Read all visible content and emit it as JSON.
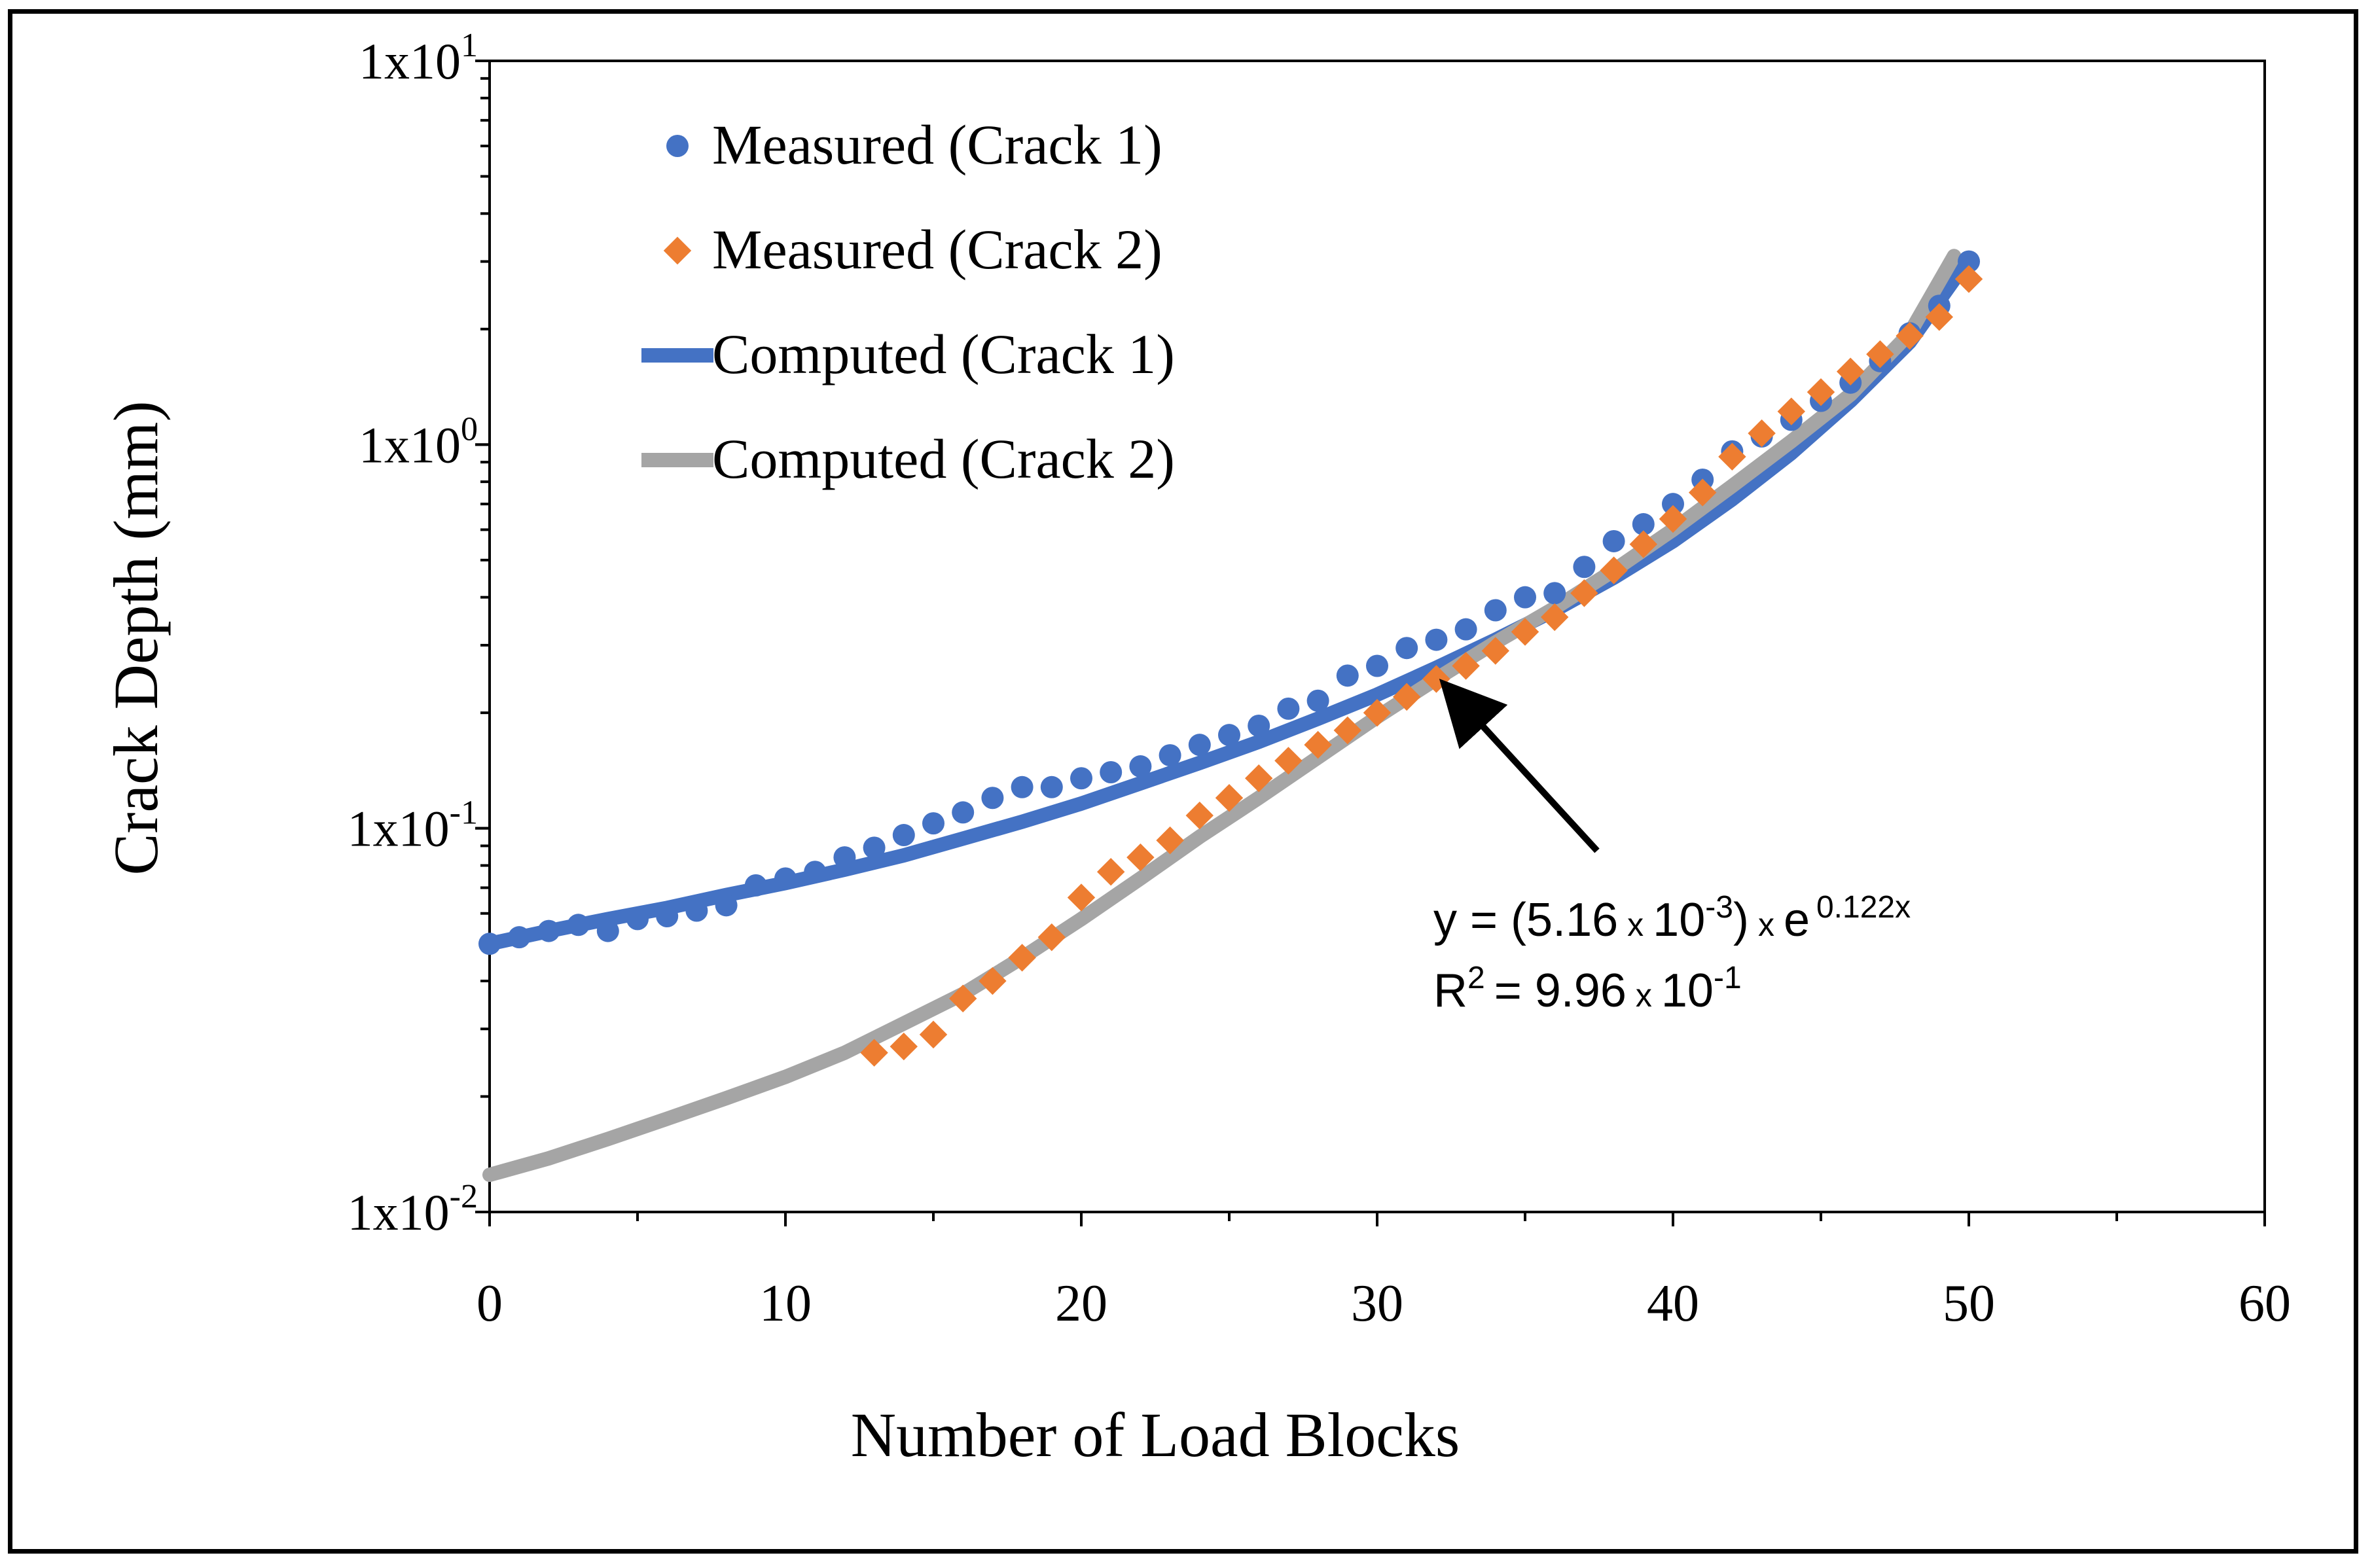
{
  "chart_data": {
    "type": "scatter",
    "title": "",
    "xlabel": "Number of Load Blocks",
    "ylabel": "Crack Depth (mm)",
    "xlim": [
      0,
      60
    ],
    "ylim": [
      0.01,
      10
    ],
    "yscale": "log",
    "grid": false,
    "legend_position": "top-left",
    "x_ticks": [
      0,
      10,
      20,
      30,
      40,
      50,
      60
    ],
    "x_tick_labels": [
      "0",
      "10",
      "20",
      "30",
      "40",
      "50",
      "60"
    ],
    "y_ticks": [
      {
        "value": 10,
        "mantissa": "1",
        "base": "x10",
        "exp": "1"
      },
      {
        "value": 1,
        "mantissa": "1",
        "base": "x10",
        "exp": "0"
      },
      {
        "value": 0.1,
        "mantissa": "1",
        "base": "x10",
        "exp": "-1"
      },
      {
        "value": 0.01,
        "mantissa": "1",
        "base": "x10",
        "exp": "-2"
      }
    ],
    "series": [
      {
        "name": "Measured (Crack 1)",
        "kind": "marker-circle",
        "color": "#4472C4",
        "x": [
          0,
          1,
          2,
          3,
          4,
          5,
          6,
          7,
          8,
          9,
          10,
          11,
          12,
          13,
          14,
          15,
          16,
          17,
          18,
          19,
          20,
          21,
          22,
          23,
          24,
          25,
          26,
          27,
          28,
          29,
          30,
          31,
          32,
          33,
          34,
          35,
          36,
          37,
          38,
          39,
          40,
          41,
          42,
          43,
          44,
          45,
          46,
          47,
          48,
          49,
          50
        ],
        "y": [
          0.05,
          0.052,
          0.054,
          0.056,
          0.054,
          0.058,
          0.059,
          0.061,
          0.063,
          0.071,
          0.074,
          0.077,
          0.084,
          0.089,
          0.096,
          0.103,
          0.11,
          0.12,
          0.128,
          0.128,
          0.135,
          0.14,
          0.145,
          0.155,
          0.165,
          0.175,
          0.185,
          0.205,
          0.215,
          0.25,
          0.265,
          0.295,
          0.31,
          0.33,
          0.37,
          0.4,
          0.41,
          0.48,
          0.56,
          0.62,
          0.7,
          0.81,
          0.96,
          1.05,
          1.16,
          1.3,
          1.45,
          1.65,
          1.95,
          2.3,
          3.0
        ]
      },
      {
        "name": "Measured (Crack 2)",
        "kind": "marker-diamond",
        "color": "#ED7D31",
        "x": [
          13,
          14,
          15,
          16,
          17,
          18,
          19,
          20,
          21,
          22,
          23,
          24,
          25,
          26,
          27,
          28,
          29,
          30,
          31,
          32,
          33,
          34,
          35,
          36,
          37,
          38,
          39,
          40,
          41,
          42,
          43,
          44,
          45,
          46,
          47,
          48,
          49,
          50
        ],
        "y": [
          0.026,
          0.027,
          0.029,
          0.036,
          0.04,
          0.046,
          0.052,
          0.066,
          0.077,
          0.084,
          0.093,
          0.108,
          0.12,
          0.135,
          0.15,
          0.165,
          0.18,
          0.2,
          0.22,
          0.245,
          0.265,
          0.29,
          0.325,
          0.355,
          0.41,
          0.47,
          0.55,
          0.64,
          0.75,
          0.93,
          1.07,
          1.22,
          1.37,
          1.55,
          1.72,
          1.92,
          2.15,
          2.7
        ]
      },
      {
        "name": "Computed (Crack 1)",
        "kind": "line",
        "color": "#4472C4",
        "x": [
          0,
          2,
          4,
          6,
          8,
          10,
          12,
          14,
          16,
          18,
          20,
          22,
          24,
          26,
          28,
          30,
          32,
          34,
          36,
          38,
          40,
          42,
          44,
          46,
          48,
          49.8
        ],
        "y": [
          0.05,
          0.054,
          0.058,
          0.062,
          0.067,
          0.072,
          0.078,
          0.085,
          0.094,
          0.104,
          0.116,
          0.131,
          0.148,
          0.168,
          0.193,
          0.223,
          0.262,
          0.31,
          0.37,
          0.45,
          0.56,
          0.72,
          0.95,
          1.3,
          1.85,
          2.9
        ]
      },
      {
        "name": "Computed (Crack 2)",
        "kind": "line",
        "color": "#A5A5A5",
        "x": [
          0,
          2,
          4,
          6,
          8,
          10,
          12,
          14,
          16,
          18,
          20,
          22,
          24,
          26,
          28,
          30,
          32,
          34,
          36,
          38,
          40,
          42,
          44,
          46,
          48,
          49.5
        ],
        "y": [
          0.0125,
          0.0138,
          0.0155,
          0.0175,
          0.0198,
          0.0225,
          0.026,
          0.031,
          0.037,
          0.046,
          0.058,
          0.074,
          0.095,
          0.12,
          0.153,
          0.195,
          0.245,
          0.305,
          0.375,
          0.47,
          0.6,
          0.78,
          1.02,
          1.35,
          1.95,
          3.1
        ]
      }
    ],
    "annotation": {
      "eq_y": "y = (5.16",
      "eq_x1": "x",
      "eq_ten1": "10",
      "eq_exp1": "-3",
      "eq_close": ")",
      "eq_x2": "x",
      "eq_e": "e",
      "eq_exp2": "0.122x",
      "r2_r": "R",
      "r2_sup": "2",
      "r2_eq": "= 9.96",
      "r2_x": "x",
      "r2_ten": "10",
      "r2_exp": "-1",
      "arrow_target_x": 31.8,
      "arrow_target_y": 0.26
    }
  }
}
